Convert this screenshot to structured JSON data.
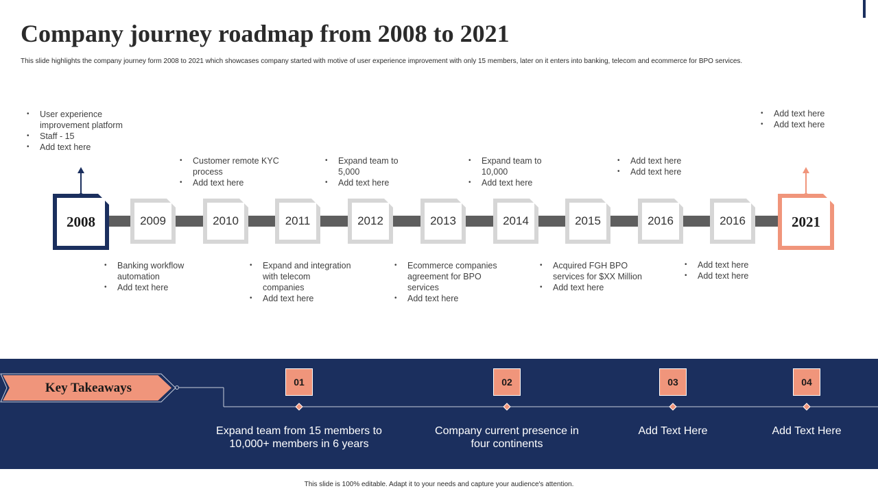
{
  "title": "Company journey roadmap from 2008 to 2021",
  "subtitle": "This slide highlights the company journey form 2008 to 2021 which showcases company started with motive of user experience improvement with only 15 members, later on it enters into banking, telecom and ecommerce for BPO  services.",
  "milestones": [
    {
      "year": "2008",
      "notes": [
        "User experience improvement  platform",
        "Staff - 15",
        "Add text here"
      ]
    },
    {
      "year": "2009",
      "notes": [
        "Banking workflow automation",
        "Add text here"
      ]
    },
    {
      "year": "2010",
      "notes": [
        "Customer remote KYC process",
        "Add text here"
      ]
    },
    {
      "year": "2011",
      "notes": [
        "Expand and integration with telecom companies",
        "Add text here"
      ]
    },
    {
      "year": "2012",
      "notes": [
        "Expand team to 5,000",
        "Add text here"
      ]
    },
    {
      "year": "2013",
      "notes": [
        "Ecommerce companies agreement  for BPO services",
        "Add text here"
      ]
    },
    {
      "year": "2014",
      "notes": [
        "Expand team to 10,000",
        "Add text here"
      ]
    },
    {
      "year": "2015",
      "notes": [
        "Acquired FGH BPO services for $XX Million",
        "Add text here"
      ]
    },
    {
      "year": "2016",
      "notes": [
        "Add text here",
        "Add text here"
      ]
    },
    {
      "year": "2016",
      "notes": [
        "Add text here",
        "Add text here"
      ]
    },
    {
      "year": "2021",
      "notes": [
        "Add text here",
        "Add text here"
      ]
    }
  ],
  "key_takeaways": {
    "label": "Key Takeaways",
    "items": [
      {
        "number": "01",
        "text": "Expand team from 15 members to 10,000+ members in 6 years"
      },
      {
        "number": "02",
        "text": "Company current presence in four continents"
      },
      {
        "number": "03",
        "text": "Add Text Here"
      },
      {
        "number": "04",
        "text": "Add Text Here"
      }
    ]
  },
  "footer": "This slide is 100% editable. Adapt it to your needs and capture your audience's attention.",
  "colors": {
    "navy": "#1b2f5e",
    "salmon": "#f0957b",
    "node_border": "#d6d6d6",
    "track": "#5e5e5e"
  }
}
